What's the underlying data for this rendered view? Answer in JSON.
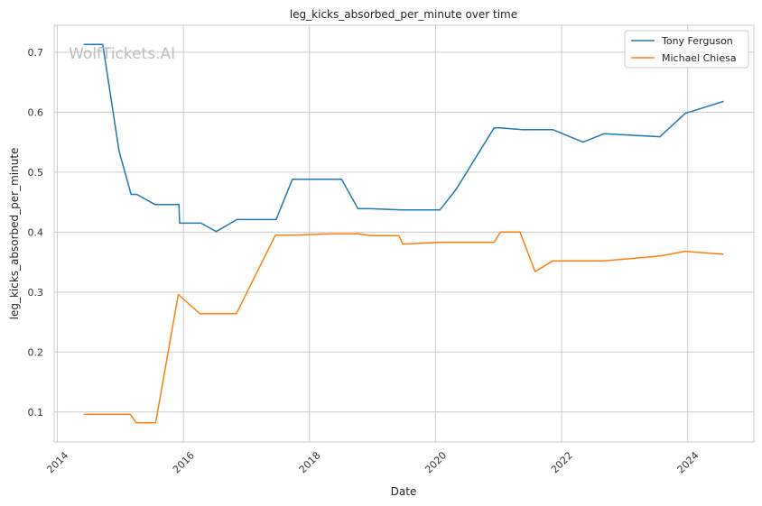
{
  "watermark": "WolfTickets.AI",
  "chart_data": {
    "type": "line",
    "title": "leg_kicks_absorbed_per_minute over time",
    "xlabel": "Date",
    "ylabel": "leg_kicks_absorbed_per_minute",
    "xlim": [
      2013.95,
      2025.05
    ],
    "ylim": [
      0.05,
      0.745
    ],
    "x_ticks": [
      2014,
      2016,
      2018,
      2020,
      2022,
      2024
    ],
    "y_ticks": [
      0.1,
      0.2,
      0.3,
      0.4,
      0.5,
      0.6,
      0.7
    ],
    "y_tick_labels": [
      "0.1",
      "0.2",
      "0.3",
      "0.4",
      "0.5",
      "0.6",
      "0.7"
    ],
    "grid": true,
    "legend_position": "top-right",
    "series": [
      {
        "name": "Tony Ferguson",
        "color": "#1f77b4",
        "points": [
          [
            2014.42,
            0.713
          ],
          [
            2014.72,
            0.713
          ],
          [
            2014.98,
            0.535
          ],
          [
            2015.17,
            0.463
          ],
          [
            2015.26,
            0.463
          ],
          [
            2015.55,
            0.446
          ],
          [
            2015.93,
            0.446
          ],
          [
            2015.94,
            0.415
          ],
          [
            2016.28,
            0.415
          ],
          [
            2016.52,
            0.401
          ],
          [
            2016.85,
            0.421
          ],
          [
            2017.47,
            0.421
          ],
          [
            2017.73,
            0.488
          ],
          [
            2018.51,
            0.488
          ],
          [
            2018.77,
            0.439
          ],
          [
            2018.98,
            0.439
          ],
          [
            2019.46,
            0.437
          ],
          [
            2020.07,
            0.437
          ],
          [
            2020.33,
            0.472
          ],
          [
            2020.93,
            0.574
          ],
          [
            2021.02,
            0.574
          ],
          [
            2021.38,
            0.571
          ],
          [
            2021.86,
            0.571
          ],
          [
            2022.34,
            0.55
          ],
          [
            2022.67,
            0.564
          ],
          [
            2023.56,
            0.559
          ],
          [
            2023.96,
            0.598
          ],
          [
            2024.57,
            0.618
          ]
        ]
      },
      {
        "name": "Michael Chiesa",
        "color": "#ff7f0e",
        "points": [
          [
            2014.42,
            0.096
          ],
          [
            2015.16,
            0.096
          ],
          [
            2015.25,
            0.082
          ],
          [
            2015.56,
            0.082
          ],
          [
            2015.92,
            0.296
          ],
          [
            2016.26,
            0.264
          ],
          [
            2016.84,
            0.264
          ],
          [
            2017.46,
            0.395
          ],
          [
            2017.73,
            0.395
          ],
          [
            2018.36,
            0.397
          ],
          [
            2018.77,
            0.397
          ],
          [
            2018.98,
            0.394
          ],
          [
            2019.42,
            0.394
          ],
          [
            2019.48,
            0.38
          ],
          [
            2020.07,
            0.383
          ],
          [
            2020.93,
            0.383
          ],
          [
            2021.03,
            0.4
          ],
          [
            2021.34,
            0.4
          ],
          [
            2021.58,
            0.334
          ],
          [
            2021.86,
            0.352
          ],
          [
            2022.67,
            0.352
          ],
          [
            2023.56,
            0.36
          ],
          [
            2023.96,
            0.368
          ],
          [
            2024.57,
            0.363
          ]
        ]
      }
    ]
  }
}
